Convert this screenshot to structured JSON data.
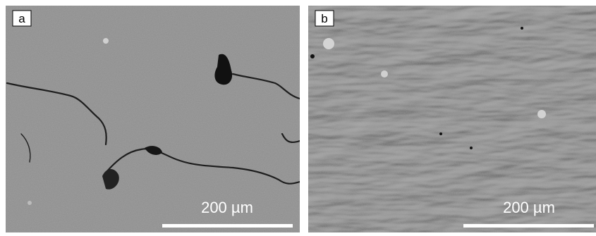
{
  "panels": [
    {
      "label": "a",
      "scale_bar": "200 µm"
    },
    {
      "label": "b",
      "scale_bar": "200 µm"
    }
  ]
}
